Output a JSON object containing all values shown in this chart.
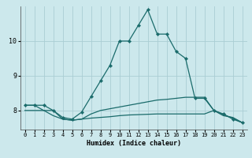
{
  "xlabel": "Humidex (Indice chaleur)",
  "bg_color": "#cce8ec",
  "grid_color": "#aacdd4",
  "line_color": "#1a6b6b",
  "x_ticks": [
    0,
    1,
    2,
    3,
    4,
    5,
    6,
    7,
    8,
    9,
    10,
    11,
    12,
    13,
    14,
    15,
    16,
    17,
    18,
    19,
    20,
    21,
    22,
    23
  ],
  "y_ticks": [
    8,
    9,
    10
  ],
  "ylim": [
    7.45,
    11.0
  ],
  "xlim": [
    -0.5,
    23.5
  ],
  "line1_x": [
    0,
    1,
    2,
    3,
    4,
    5,
    6,
    7,
    8,
    9,
    10,
    11,
    12,
    13,
    14,
    15,
    16,
    17,
    18,
    19,
    20,
    21,
    22,
    23
  ],
  "line1_y": [
    8.15,
    8.15,
    8.15,
    8.0,
    7.8,
    7.75,
    7.95,
    8.4,
    8.85,
    9.3,
    10.0,
    10.0,
    10.45,
    10.9,
    10.2,
    10.2,
    9.7,
    9.5,
    8.35,
    8.35,
    8.0,
    7.9,
    7.75,
    7.65
  ],
  "line2_x": [
    0,
    1,
    2,
    3,
    4,
    5,
    6,
    7,
    8,
    9,
    10,
    11,
    12,
    13,
    14,
    15,
    16,
    17,
    18,
    19,
    20,
    21,
    22,
    23
  ],
  "line2_y": [
    8.0,
    8.0,
    8.0,
    8.0,
    7.75,
    7.72,
    7.75,
    7.78,
    7.8,
    7.82,
    7.85,
    7.87,
    7.88,
    7.89,
    7.9,
    7.9,
    7.9,
    7.9,
    7.9,
    7.9,
    8.0,
    7.85,
    7.8,
    7.65
  ],
  "line3_x": [
    0,
    1,
    2,
    3,
    4,
    5,
    6,
    7,
    8,
    9,
    10,
    11,
    12,
    13,
    14,
    15,
    16,
    17,
    18,
    19,
    20,
    21,
    22,
    23
  ],
  "line3_y": [
    8.15,
    8.15,
    8.0,
    7.85,
    7.75,
    7.72,
    7.75,
    7.9,
    8.0,
    8.05,
    8.1,
    8.15,
    8.2,
    8.25,
    8.3,
    8.32,
    8.35,
    8.38,
    8.38,
    8.38,
    8.0,
    7.88,
    7.78,
    7.65
  ]
}
